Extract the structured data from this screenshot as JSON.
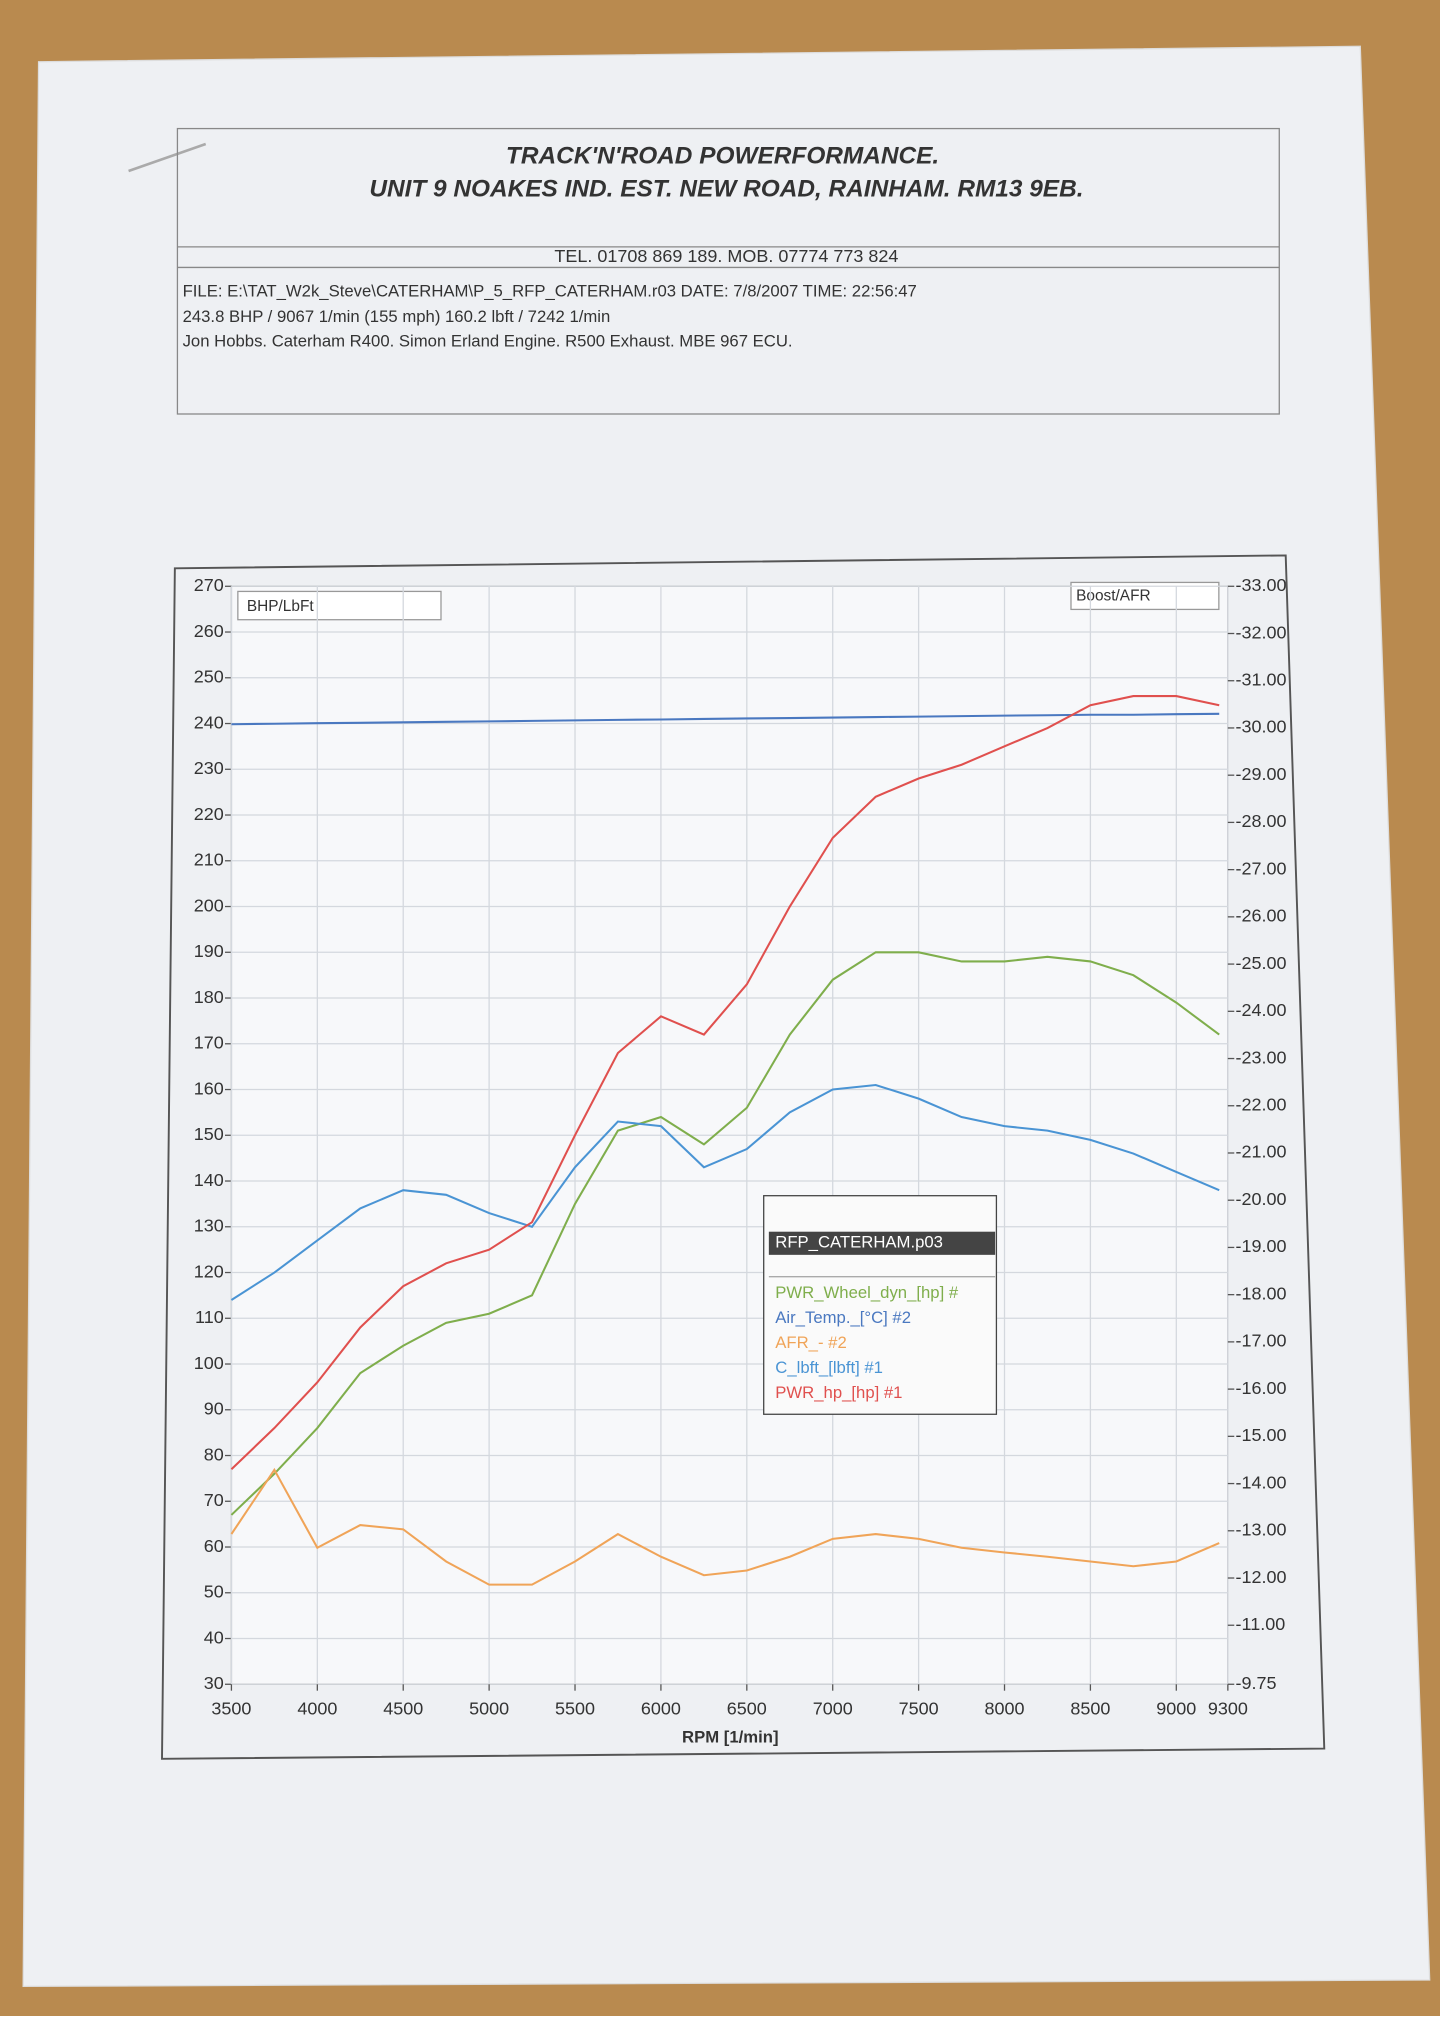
{
  "header": {
    "title": "TRACK'N'ROAD POWERFORMANCE.",
    "address": "UNIT 9 NOAKES IND. EST. NEW ROAD, RAINHAM. RM13 9EB.",
    "contact": "TEL. 01708 869 189. MOB. 07774 773 824",
    "file": "FILE: E:\\TAT_W2k_Steve\\CATERHAM\\P_5_RFP_CATERHAM.r03  DATE: 7/8/2007  TIME: 22:56:47",
    "stats": "243.8 BHP / 9067 1/min (155 mph)    160.2 lbft / 7242 1/min",
    "description": "Jon Hobbs. Caterham R400. Simon Erland Engine.  R500 Exhaust. MBE 967 ECU."
  },
  "chart_data": {
    "type": "line",
    "x_label": "RPM [1/min]",
    "y_label": "BHP/LbFt",
    "y2_label": "Boost/AFR",
    "legend_title": "RFP_CATERHAM.p03",
    "x": [
      3500,
      3750,
      4000,
      4250,
      4500,
      4750,
      5000,
      5250,
      5500,
      5750,
      6000,
      6250,
      6500,
      6750,
      7000,
      7250,
      7500,
      7750,
      8000,
      8250,
      8500,
      8750,
      9000,
      9250
    ],
    "series": [
      {
        "name": "PWR_Wheel_dyn_[hp] #",
        "color": "#7fae4c",
        "values": [
          67,
          76,
          86,
          98,
          104,
          109,
          111,
          115,
          135,
          151,
          154,
          148,
          156,
          172,
          184,
          190,
          190,
          188,
          188,
          189,
          188,
          185,
          179,
          172
        ]
      },
      {
        "name": "Air_Temp._[°C] #2",
        "color": "#4a78c0",
        "axis": "y2",
        "values": [
          -30.08,
          -30.09,
          -30.1,
          -30.11,
          -30.12,
          -30.13,
          -30.14,
          -30.15,
          -30.16,
          -30.17,
          -30.18,
          -30.19,
          -30.2,
          -30.21,
          -30.22,
          -30.23,
          -30.24,
          -30.25,
          -30.26,
          -30.27,
          -30.28,
          -30.28,
          -30.29,
          -30.3
        ]
      },
      {
        "name": "AFR_- #2",
        "color": "#f0a458",
        "axis": "y2",
        "values": [
          -12.93,
          -14.29,
          -12.64,
          -13.12,
          -13.03,
          -12.35,
          -11.86,
          -11.86,
          -12.35,
          -12.93,
          -12.45,
          -12.06,
          -12.16,
          -12.45,
          -12.83,
          -12.93,
          -12.83,
          -12.64,
          -12.54,
          -12.45,
          -12.35,
          -12.25,
          -12.35,
          -12.74
        ]
      },
      {
        "name": "C_lbft_[lbft] #1",
        "color": "#4a94d4",
        "values": [
          114,
          120,
          127,
          134,
          138,
          137,
          133,
          130,
          143,
          153,
          152,
          143,
          147,
          155,
          160,
          161,
          158,
          154,
          152,
          151,
          149,
          146,
          142,
          138
        ]
      },
      {
        "name": "PWR_hp_[hp] #1",
        "color": "#e0504e",
        "values": [
          77,
          86,
          96,
          108,
          117,
          122,
          125,
          131,
          150,
          168,
          176,
          172,
          183,
          200,
          215,
          224,
          228,
          231,
          235,
          239,
          244,
          246,
          246,
          244
        ]
      }
    ],
    "xlim": [
      3500,
      9300
    ],
    "xticks": [
      3500,
      4000,
      4500,
      5000,
      5500,
      6000,
      6500,
      7000,
      7500,
      8000,
      8500,
      9000,
      9300
    ],
    "ylim": [
      30,
      270
    ],
    "yticks": [
      30,
      40,
      50,
      60,
      70,
      80,
      90,
      100,
      110,
      120,
      130,
      140,
      150,
      160,
      170,
      180,
      190,
      200,
      210,
      220,
      230,
      240,
      250,
      260,
      270
    ],
    "y2lim": [
      -9.75,
      -33
    ],
    "y2ticks": [
      -9.75,
      {
        "value": -11,
        "label": "-11.00"
      },
      {
        "value": -12,
        "label": "-12.00"
      },
      {
        "value": -13,
        "label": "-13.00"
      },
      {
        "value": -14,
        "label": "-14.00"
      },
      {
        "value": -15,
        "label": "-15.00"
      },
      {
        "value": -16,
        "label": "-16.00"
      },
      {
        "value": -17,
        "label": "-17.00"
      },
      {
        "value": -18,
        "label": "-18.00"
      },
      {
        "value": -19,
        "label": "-19.00"
      },
      {
        "value": -20,
        "label": "-20.00"
      },
      {
        "value": -21,
        "label": "-21.00"
      },
      {
        "value": -22,
        "label": "-22.00"
      },
      {
        "value": -23,
        "label": "-23.00"
      },
      {
        "value": -24,
        "label": "-24.00"
      },
      {
        "value": -25,
        "label": "-25.00"
      },
      {
        "value": -26,
        "label": "-26.00"
      },
      {
        "value": -27,
        "label": "-27.00"
      },
      {
        "value": -28,
        "label": "-28.00"
      },
      {
        "value": -29,
        "label": "-29.00"
      },
      {
        "value": -30,
        "label": "-30.00"
      },
      {
        "value": -31,
        "label": "-31.00"
      },
      {
        "value": -32,
        "label": "-32.00"
      },
      {
        "value": -33,
        "label": "-33.00"
      }
    ],
    "grid": true
  }
}
